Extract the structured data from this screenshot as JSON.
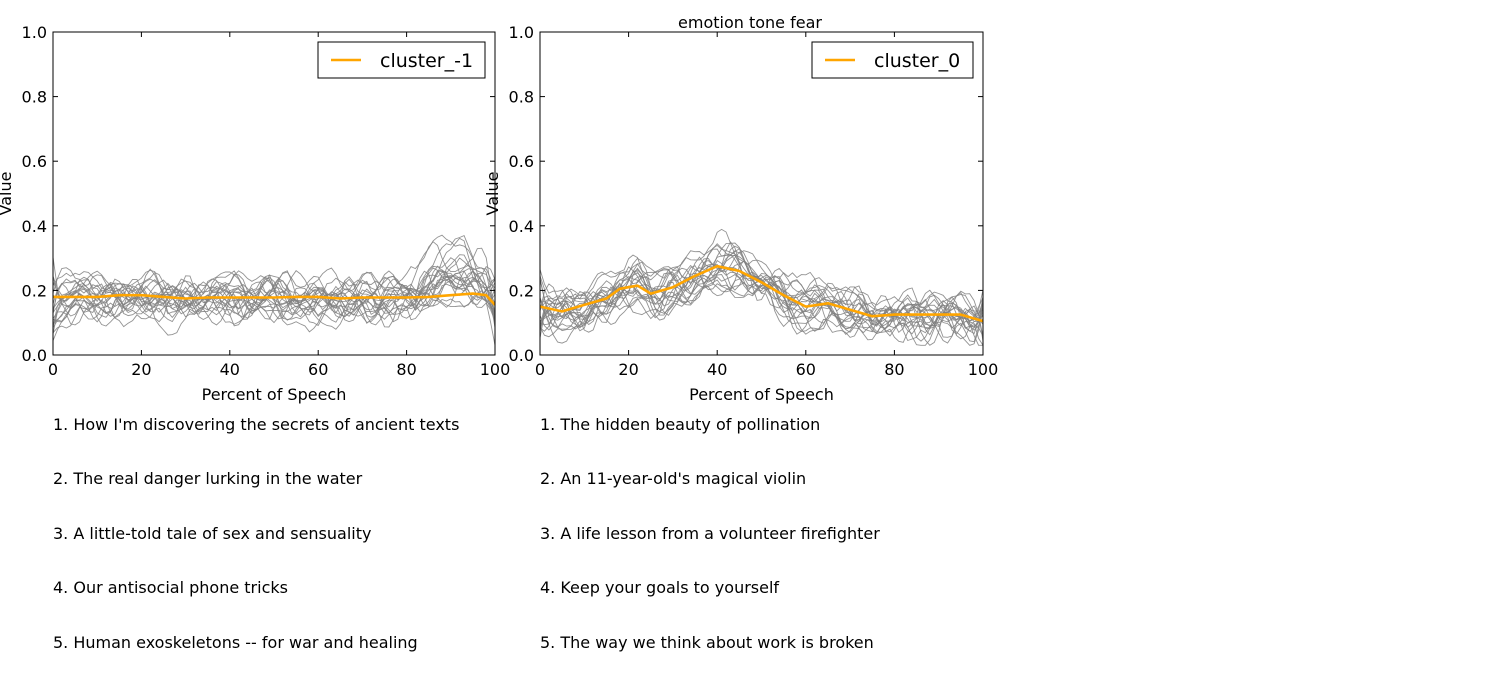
{
  "suptitle": "emotion tone fear",
  "colors": {
    "mean": "#ffa500",
    "member": "#808080",
    "axis": "#000000"
  },
  "chart_data": [
    {
      "type": "line",
      "title": "",
      "xlabel": "Percent of Speech",
      "ylabel": "Value",
      "xlim": [
        0,
        100
      ],
      "ylim": [
        0.0,
        1.0
      ],
      "xticks": [
        "0",
        "20",
        "40",
        "60",
        "80",
        "100"
      ],
      "yticks": [
        "0.0",
        "0.2",
        "0.4",
        "0.6",
        "0.8",
        "1.0"
      ],
      "grid": false,
      "legend_position": "top-right",
      "series": [
        {
          "name": "cluster_-1",
          "role": "mean",
          "x": [
            0,
            5,
            10,
            15,
            20,
            25,
            30,
            35,
            40,
            45,
            50,
            55,
            60,
            65,
            70,
            75,
            80,
            85,
            90,
            95,
            98,
            100
          ],
          "values": [
            0.18,
            0.18,
            0.18,
            0.185,
            0.185,
            0.18,
            0.175,
            0.178,
            0.178,
            0.178,
            0.178,
            0.18,
            0.18,
            0.175,
            0.178,
            0.178,
            0.178,
            0.18,
            0.185,
            0.19,
            0.185,
            0.155
          ]
        }
      ],
      "top_talks": [
        "1. How I'm discovering the secrets of ancient texts",
        "2. The real danger lurking in the water",
        "3. A little-told tale of sex and sensuality",
        "4. Our antisocial phone tricks",
        "5. Human exoskeletons -- for war and healing"
      ]
    },
    {
      "type": "line",
      "title": "",
      "xlabel": "Percent of Speech",
      "ylabel": "Value",
      "xlim": [
        0,
        100
      ],
      "ylim": [
        0.0,
        1.0
      ],
      "xticks": [
        "0",
        "20",
        "40",
        "60",
        "80",
        "100"
      ],
      "yticks": [
        "0.0",
        "0.2",
        "0.4",
        "0.6",
        "0.8",
        "1.0"
      ],
      "grid": false,
      "legend_position": "top-right",
      "series": [
        {
          "name": "cluster_0",
          "role": "mean",
          "x": [
            0,
            5,
            10,
            15,
            18,
            20,
            22,
            25,
            30,
            35,
            40,
            45,
            50,
            55,
            60,
            65,
            70,
            75,
            80,
            85,
            90,
            95,
            100
          ],
          "values": [
            0.15,
            0.135,
            0.155,
            0.175,
            0.205,
            0.21,
            0.215,
            0.19,
            0.21,
            0.245,
            0.275,
            0.26,
            0.225,
            0.185,
            0.15,
            0.16,
            0.14,
            0.12,
            0.125,
            0.125,
            0.125,
            0.125,
            0.105
          ]
        }
      ],
      "top_talks": [
        "1. The hidden beauty of pollination",
        "2. An 11-year-old's magical violin",
        "3. A life lesson from a volunteer firefighter",
        "4. Keep your goals to yourself",
        "5. The way we think about work is broken"
      ]
    }
  ]
}
